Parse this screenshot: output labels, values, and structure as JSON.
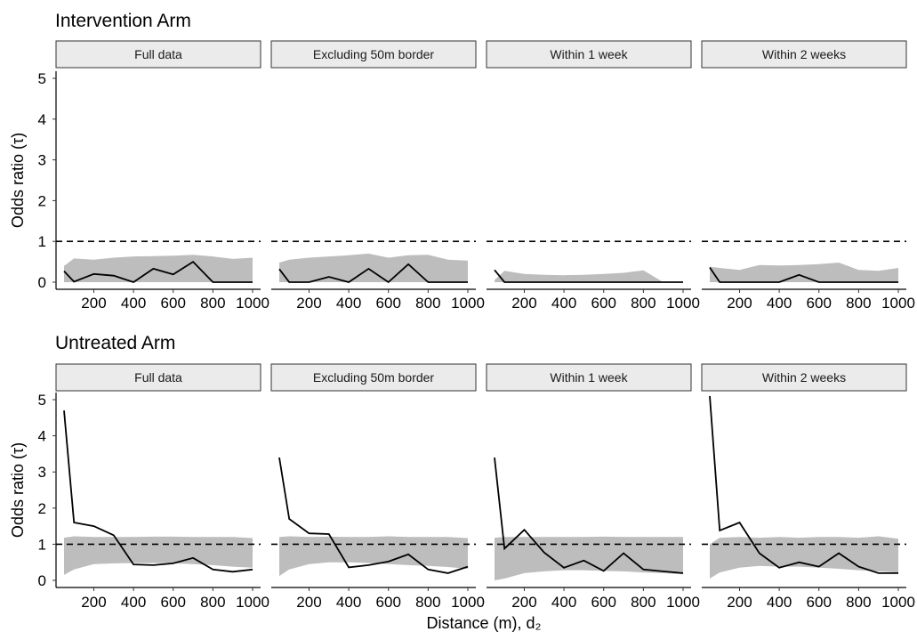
{
  "panels": [
    {
      "title": "Intervention Arm",
      "facets": [
        {
          "strip": "Full data",
          "x": [
            50,
            100,
            200,
            300,
            400,
            500,
            600,
            700,
            800,
            900,
            1000
          ],
          "line": [
            0.27,
            0.01,
            0.2,
            0.16,
            0.0,
            0.33,
            0.19,
            0.5,
            0.0,
            0.0,
            0.0
          ],
          "band_lo": [
            0.0,
            0.0,
            0.0,
            0.0,
            0.0,
            0.0,
            0.0,
            0.0,
            0.0,
            0.0,
            0.0
          ],
          "band_hi": [
            0.4,
            0.58,
            0.55,
            0.6,
            0.63,
            0.64,
            0.65,
            0.67,
            0.63,
            0.57,
            0.6
          ]
        },
        {
          "strip": "Excluding 50m border",
          "x": [
            50,
            100,
            200,
            300,
            400,
            500,
            600,
            700,
            800,
            900,
            1000
          ],
          "line": [
            0.32,
            0.0,
            0.0,
            0.13,
            0.0,
            0.33,
            0.0,
            0.44,
            0.0,
            0.0,
            0.0
          ],
          "band_lo": [
            0.0,
            0.0,
            0.0,
            0.0,
            0.0,
            0.0,
            0.0,
            0.0,
            0.0,
            0.0,
            0.0
          ],
          "band_hi": [
            0.48,
            0.55,
            0.6,
            0.63,
            0.66,
            0.7,
            0.6,
            0.66,
            0.67,
            0.55,
            0.53
          ]
        },
        {
          "strip": "Within 1 week",
          "x": [
            50,
            100,
            200,
            300,
            400,
            500,
            600,
            700,
            800,
            900,
            1000
          ],
          "line": [
            0.3,
            0.0,
            0.0,
            0.0,
            0.0,
            0.0,
            0.0,
            0.0,
            0.0,
            0.0,
            0.0
          ],
          "band_lo": [
            0.0,
            0.0,
            0.0,
            0.0,
            0.0,
            0.0,
            0.0,
            0.0,
            0.0,
            0.0,
            0.0
          ],
          "band_hi": [
            0.05,
            0.28,
            0.2,
            0.18,
            0.17,
            0.18,
            0.2,
            0.23,
            0.29,
            0.0,
            0.0
          ]
        },
        {
          "strip": "Within 2 weeks",
          "x": [
            50,
            100,
            200,
            300,
            400,
            500,
            600,
            700,
            800,
            900,
            1000
          ],
          "line": [
            0.36,
            0.0,
            0.0,
            0.0,
            0.0,
            0.18,
            0.0,
            0.0,
            0.0,
            0.0,
            0.0
          ],
          "band_lo": [
            0.0,
            0.0,
            0.0,
            0.0,
            0.0,
            0.0,
            0.0,
            0.0,
            0.0,
            0.0,
            0.0
          ],
          "band_hi": [
            0.38,
            0.35,
            0.3,
            0.42,
            0.41,
            0.42,
            0.44,
            0.48,
            0.3,
            0.28,
            0.35
          ]
        }
      ]
    },
    {
      "title": "Untreated Arm",
      "facets": [
        {
          "strip": "Full data",
          "x": [
            50,
            100,
            200,
            300,
            400,
            500,
            600,
            700,
            800,
            900,
            1000
          ],
          "line": [
            4.7,
            1.6,
            1.5,
            1.25,
            0.44,
            0.42,
            0.47,
            0.62,
            0.3,
            0.24,
            0.3
          ],
          "band_lo": [
            0.15,
            0.3,
            0.45,
            0.47,
            0.48,
            0.48,
            0.47,
            0.45,
            0.42,
            0.38,
            0.35
          ],
          "band_hi": [
            1.18,
            1.22,
            1.2,
            1.2,
            1.2,
            1.21,
            1.21,
            1.2,
            1.2,
            1.2,
            1.17
          ]
        },
        {
          "strip": "Excluding 50m border",
          "x": [
            50,
            100,
            200,
            300,
            400,
            500,
            600,
            700,
            800,
            900,
            1000
          ],
          "line": [
            3.4,
            1.7,
            1.3,
            1.28,
            0.36,
            0.42,
            0.52,
            0.72,
            0.3,
            0.2,
            0.38
          ],
          "band_lo": [
            0.12,
            0.3,
            0.45,
            0.5,
            0.5,
            0.48,
            0.45,
            0.42,
            0.4,
            0.37,
            0.32
          ],
          "band_hi": [
            1.2,
            1.22,
            1.2,
            1.21,
            1.2,
            1.2,
            1.22,
            1.2,
            1.2,
            1.2,
            1.17
          ]
        },
        {
          "strip": "Within 1 week",
          "x": [
            50,
            100,
            200,
            300,
            400,
            500,
            600,
            700,
            800,
            900,
            1000
          ],
          "line": [
            3.4,
            0.88,
            1.4,
            0.77,
            0.35,
            0.55,
            0.26,
            0.75,
            0.3,
            0.25,
            0.2
          ],
          "band_lo": [
            0.0,
            0.05,
            0.2,
            0.25,
            0.28,
            0.28,
            0.26,
            0.25,
            0.22,
            0.2,
            0.17
          ],
          "band_hi": [
            1.18,
            1.2,
            1.2,
            1.2,
            1.2,
            1.2,
            1.21,
            1.2,
            1.2,
            1.2,
            1.2
          ]
        },
        {
          "strip": "Within 2 weeks",
          "x": [
            50,
            100,
            200,
            300,
            400,
            500,
            600,
            700,
            800,
            900,
            1000
          ],
          "line": [
            5.1,
            1.38,
            1.6,
            0.75,
            0.35,
            0.5,
            0.38,
            0.75,
            0.38,
            0.2,
            0.2
          ],
          "band_lo": [
            0.05,
            0.22,
            0.35,
            0.4,
            0.38,
            0.38,
            0.35,
            0.32,
            0.28,
            0.25,
            0.22
          ],
          "band_hi": [
            1.0,
            1.18,
            1.2,
            1.18,
            1.2,
            1.18,
            1.2,
            1.2,
            1.18,
            1.22,
            1.15
          ]
        }
      ]
    }
  ],
  "chart_data": {
    "type": "line",
    "ylabel": "Odds ratio (τ)",
    "xlabel": "Distance (m), d₂",
    "xlim": [
      50,
      1000
    ],
    "ylim": [
      0,
      5
    ],
    "xticks": [
      200,
      400,
      600,
      800,
      1000
    ],
    "yticks": [
      0,
      1,
      2,
      3,
      4,
      5
    ],
    "reference_line": 1,
    "reference_style": "dashed",
    "band_color": "#bdbdbd",
    "line_color": "#000000",
    "strip_fill": "#ebebeb"
  }
}
